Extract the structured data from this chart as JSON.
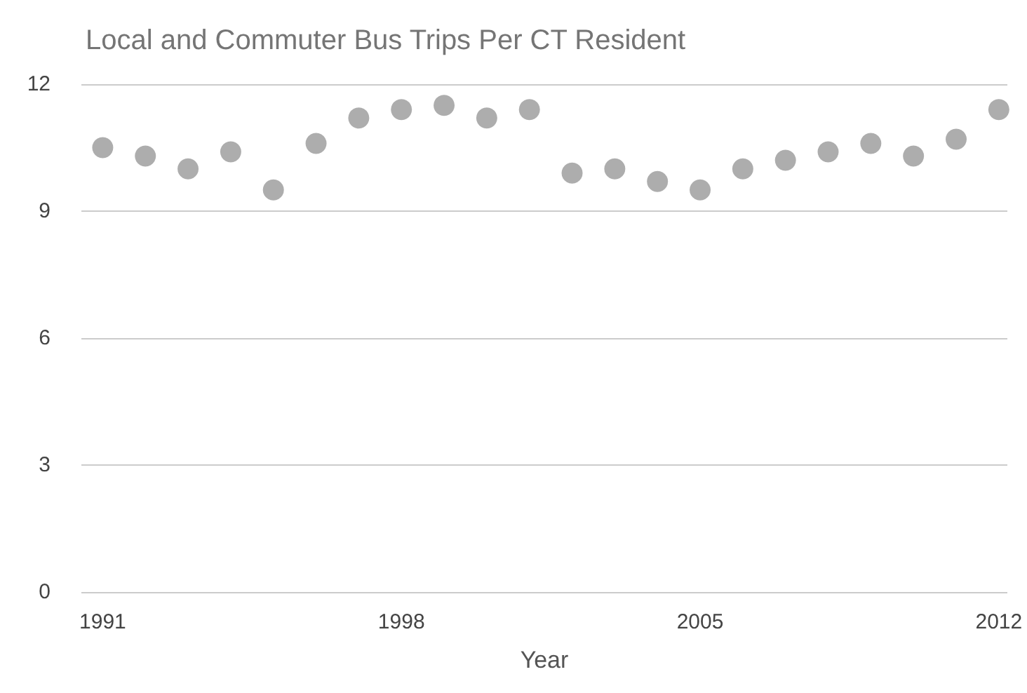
{
  "chart_data": {
    "type": "scatter",
    "title": "Local and Commuter Bus Trips Per CT Resident",
    "xlabel": "Year",
    "x": [
      1991,
      1992,
      1993,
      1994,
      1995,
      1996,
      1997,
      1998,
      1999,
      2000,
      2001,
      2002,
      2003,
      2004,
      2005,
      2006,
      2007,
      2008,
      2009,
      2010,
      2011,
      2012
    ],
    "series": [
      {
        "color": "#999999",
        "values": [
          10.5,
          10.3,
          10.0,
          10.4,
          9.5,
          10.6,
          11.2,
          11.4,
          11.5,
          11.2,
          11.4,
          9.9,
          10.0,
          9.7,
          9.5,
          10.0,
          10.2,
          10.4,
          10.6,
          10.3,
          10.7,
          11.4
        ]
      }
    ],
    "xlim": [
      1990.5,
      2012.2
    ],
    "xticks": [
      1991,
      1998,
      2005,
      2012
    ],
    "ylim": [
      0,
      12
    ],
    "yticks": [
      0,
      3,
      6,
      9,
      12
    ],
    "grid": "y",
    "marker": "circle"
  }
}
